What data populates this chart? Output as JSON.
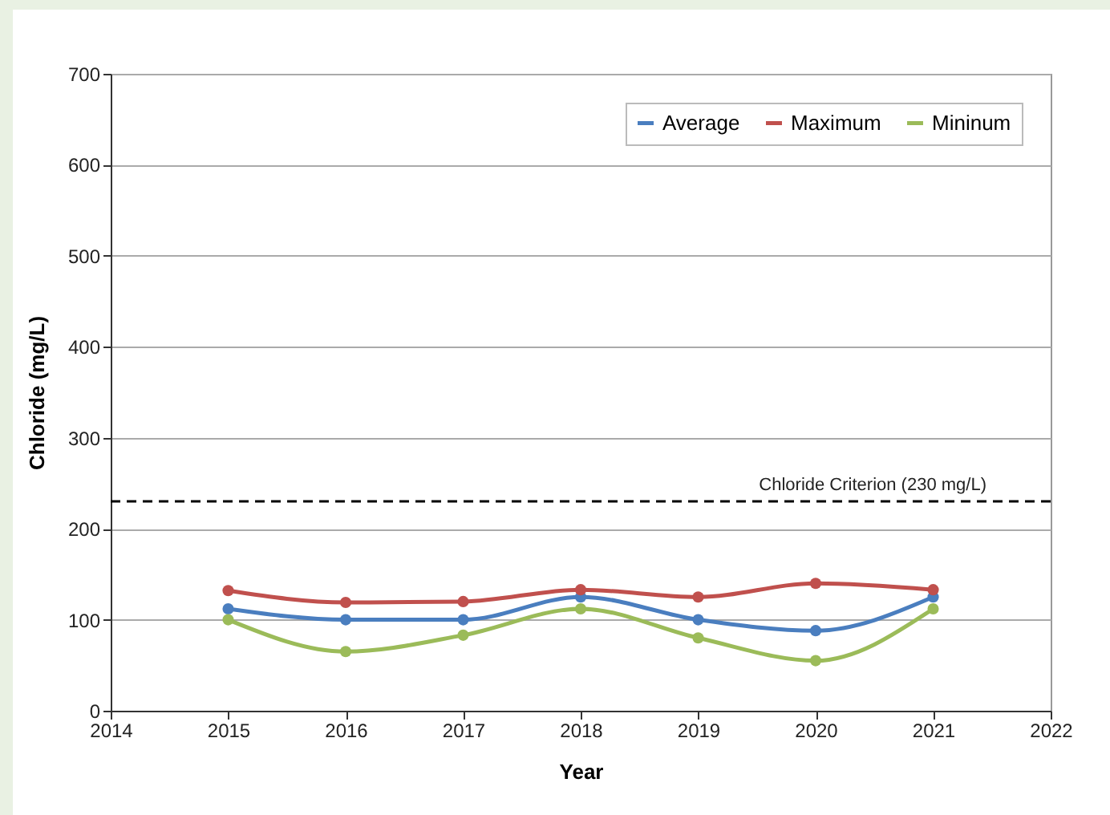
{
  "chart_data": {
    "type": "line",
    "xlabel": "Year",
    "ylabel": "Chloride (mg/L)",
    "x": [
      2015,
      2016,
      2017,
      2018,
      2019,
      2020,
      2021
    ],
    "series": [
      {
        "name": "Average",
        "color": "#4a7ebf",
        "values": [
          112,
          100,
          100,
          125,
          100,
          88,
          125
        ]
      },
      {
        "name": "Maximum",
        "color": "#c0504d",
        "values": [
          132,
          119,
          120,
          133,
          125,
          140,
          133
        ]
      },
      {
        "name": "Mininum",
        "color": "#9bbb59",
        "values": [
          100,
          65,
          83,
          112,
          80,
          55,
          112
        ]
      }
    ],
    "xlim": [
      2014,
      2022
    ],
    "xticks": [
      2014,
      2015,
      2016,
      2017,
      2018,
      2019,
      2020,
      2021,
      2022
    ],
    "ylim": [
      0,
      700
    ],
    "yticks": [
      0,
      100,
      200,
      300,
      400,
      500,
      600,
      700
    ],
    "ref_lines": [
      {
        "axis": "y",
        "value": 230,
        "label": "Chloride Criterion (230 mg/L)",
        "line_style": "dashed",
        "color": "#000000"
      }
    ],
    "grid": "y",
    "legend": "top right",
    "marker": "circle",
    "line_style": "solid"
  }
}
